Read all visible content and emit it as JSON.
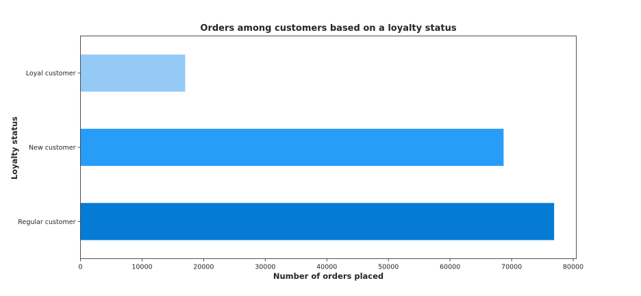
{
  "chart_data": {
    "type": "bar",
    "orientation": "horizontal",
    "title": "Orders among customers based on a loyalty status",
    "xlabel": "Number of orders placed",
    "ylabel": "Loyalty status",
    "categories": [
      "Loyal customer",
      "New customer",
      "Regular customer"
    ],
    "values": [
      17000,
      68700,
      76900
    ],
    "colors": [
      "#95c9f6",
      "#289df8",
      "#057bd6"
    ],
    "xlim": [
      0,
      80500
    ],
    "xticks": [
      0,
      10000,
      20000,
      30000,
      40000,
      50000,
      60000,
      70000,
      80000
    ],
    "grid": false
  }
}
